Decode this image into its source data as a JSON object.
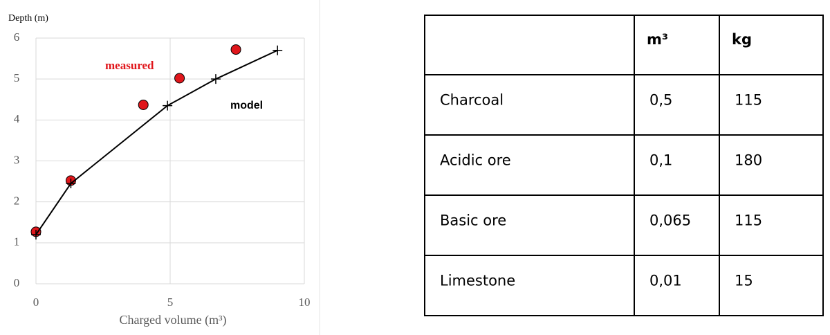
{
  "chart_data": {
    "type": "line",
    "xlabel": "Charged volume (m³)",
    "ylabel": "Depth (m)",
    "xlim": [
      0,
      10
    ],
    "xticks": [
      0,
      5,
      10
    ],
    "ylim": [
      0,
      6
    ],
    "yticks": [
      0,
      1,
      2,
      3,
      4,
      5,
      6
    ],
    "grid": true,
    "series": [
      {
        "name": "measured",
        "color": "#e0161b",
        "marker": "circle",
        "line": false,
        "x": [
          0,
          1.3,
          4.0,
          5.35,
          7.45
        ],
        "values": [
          1.27,
          2.52,
          4.37,
          5.02,
          5.72
        ]
      },
      {
        "name": "model",
        "color": "#000000",
        "marker": "plus",
        "line": true,
        "x": [
          0,
          1.3,
          4.9,
          6.7,
          9.0
        ],
        "values": [
          1.2,
          2.45,
          4.35,
          5.0,
          5.7
        ]
      }
    ]
  },
  "table": {
    "header": [
      "m³",
      "kg"
    ],
    "rows": [
      [
        "Charcoal",
        "0,5",
        "115"
      ],
      [
        "Acidic ore",
        "0,1",
        "180"
      ],
      [
        "Basic ore",
        "0,065",
        "115"
      ],
      [
        "Limestone",
        "0,01",
        "15"
      ]
    ]
  }
}
